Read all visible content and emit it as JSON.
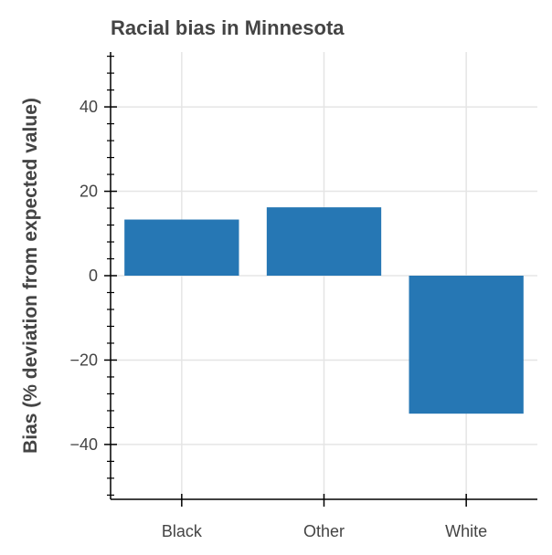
{
  "chart_data": {
    "type": "bar",
    "title": "Racial bias in Minnesota",
    "xlabel": "",
    "ylabel": "Bias (% deviation from expected value)",
    "categories": [
      "Black",
      "Other",
      "White"
    ],
    "values": [
      13.3,
      16.2,
      -32.7
    ],
    "ylim": [
      -53,
      53
    ],
    "yticks": [
      -40,
      -20,
      0,
      20,
      40
    ],
    "ytick_labels": [
      "−40",
      "−20",
      "0",
      "20",
      "40"
    ],
    "grid": true,
    "bar_color": "#2677b4",
    "legend": null
  }
}
